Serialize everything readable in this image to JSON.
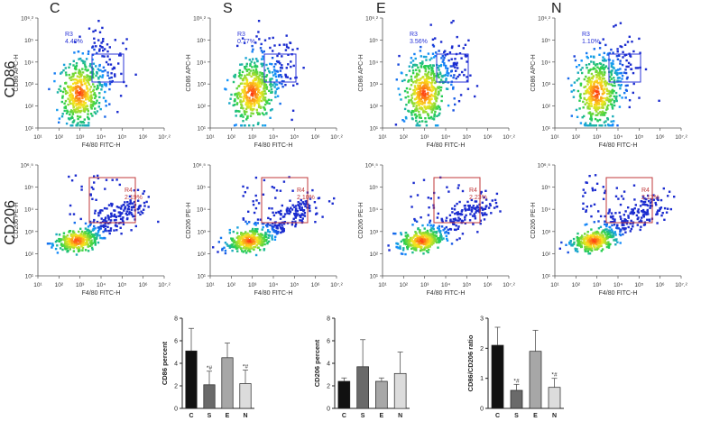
{
  "figure": {
    "group_labels": [
      "C",
      "S",
      "E",
      "N"
    ],
    "row_labels": [
      "CD86",
      "CD206"
    ]
  },
  "colors": {
    "gate_cd86": "#2b35d8",
    "gate_cd206": "#c0393b",
    "density_low": "#1b2ccf",
    "density_mid": "#27d04a",
    "density_high": "#ff2a12",
    "bar_C": "#111111",
    "bar_S": "#6a6a6a",
    "bar_E": "#a7a7a7",
    "bar_N": "#dcdcdc"
  },
  "flow_plots": [
    {
      "row": "CD86",
      "x_axis_label": "F4/80 FITC-H",
      "y_axis_label": "CD86 APC-H",
      "x_ticks": [
        "10¹",
        "10²",
        "10³",
        "10⁴",
        "10⁵",
        "10⁶",
        "10⁷.²"
      ],
      "y_ticks": [
        "10¹",
        "10²",
        "10³",
        "10⁴",
        "10⁵",
        "10⁶.²"
      ],
      "gate_name": "R3",
      "panels": [
        {
          "group": "C",
          "gate_value": "4.40%"
        },
        {
          "group": "S",
          "gate_value": "0.77%"
        },
        {
          "group": "E",
          "gate_value": "3.56%"
        },
        {
          "group": "N",
          "gate_value": "1.10%"
        }
      ]
    },
    {
      "row": "CD206",
      "x_axis_label": "F4/80 FITC-H",
      "y_axis_label": "CD206 PE-H",
      "x_ticks": [
        "10¹",
        "10²",
        "10³",
        "10⁴",
        "10⁵",
        "10⁶",
        "10⁷.²"
      ],
      "y_ticks": [
        "10¹",
        "10²",
        "10³",
        "10⁴",
        "10⁵",
        "10⁶.⁵"
      ],
      "gate_name": "R4",
      "panels": [
        {
          "group": "C",
          "gate_value": "2.19%"
        },
        {
          "group": "S",
          "gate_value": "2.10%"
        },
        {
          "group": "E",
          "gate_value": "2.23%"
        },
        {
          "group": "N",
          "gate_value": "2.13%"
        }
      ]
    }
  ],
  "chart_data": [
    {
      "type": "bar",
      "title": "",
      "ylabel": "CD86 percent",
      "xlabel": "",
      "categories": [
        "C",
        "S",
        "E",
        "N"
      ],
      "values": [
        5.1,
        2.1,
        4.5,
        2.2
      ],
      "error": [
        2.0,
        1.2,
        1.3,
        1.2
      ],
      "annotations": [
        "",
        "*#",
        "",
        "*#"
      ],
      "ylim": [
        0,
        8
      ],
      "yticks": [
        0,
        2,
        4,
        6,
        8
      ]
    },
    {
      "type": "bar",
      "title": "",
      "ylabel": "CD206 percent",
      "xlabel": "",
      "categories": [
        "C",
        "S",
        "E",
        "N"
      ],
      "values": [
        2.4,
        3.7,
        2.4,
        3.1
      ],
      "error": [
        0.3,
        2.4,
        0.3,
        1.9
      ],
      "annotations": [
        "",
        "",
        "",
        ""
      ],
      "ylim": [
        0,
        8
      ],
      "yticks": [
        0,
        2,
        4,
        6,
        8
      ]
    },
    {
      "type": "bar",
      "title": "",
      "ylabel": "CD86/CD206 ratio",
      "xlabel": "",
      "categories": [
        "C",
        "S",
        "E",
        "N"
      ],
      "values": [
        2.1,
        0.6,
        1.9,
        0.7
      ],
      "error": [
        0.6,
        0.2,
        0.7,
        0.3
      ],
      "annotations": [
        "",
        "*#",
        "",
        "*#"
      ],
      "ylim": [
        0,
        3
      ],
      "yticks": [
        0,
        1,
        2,
        3
      ]
    }
  ]
}
